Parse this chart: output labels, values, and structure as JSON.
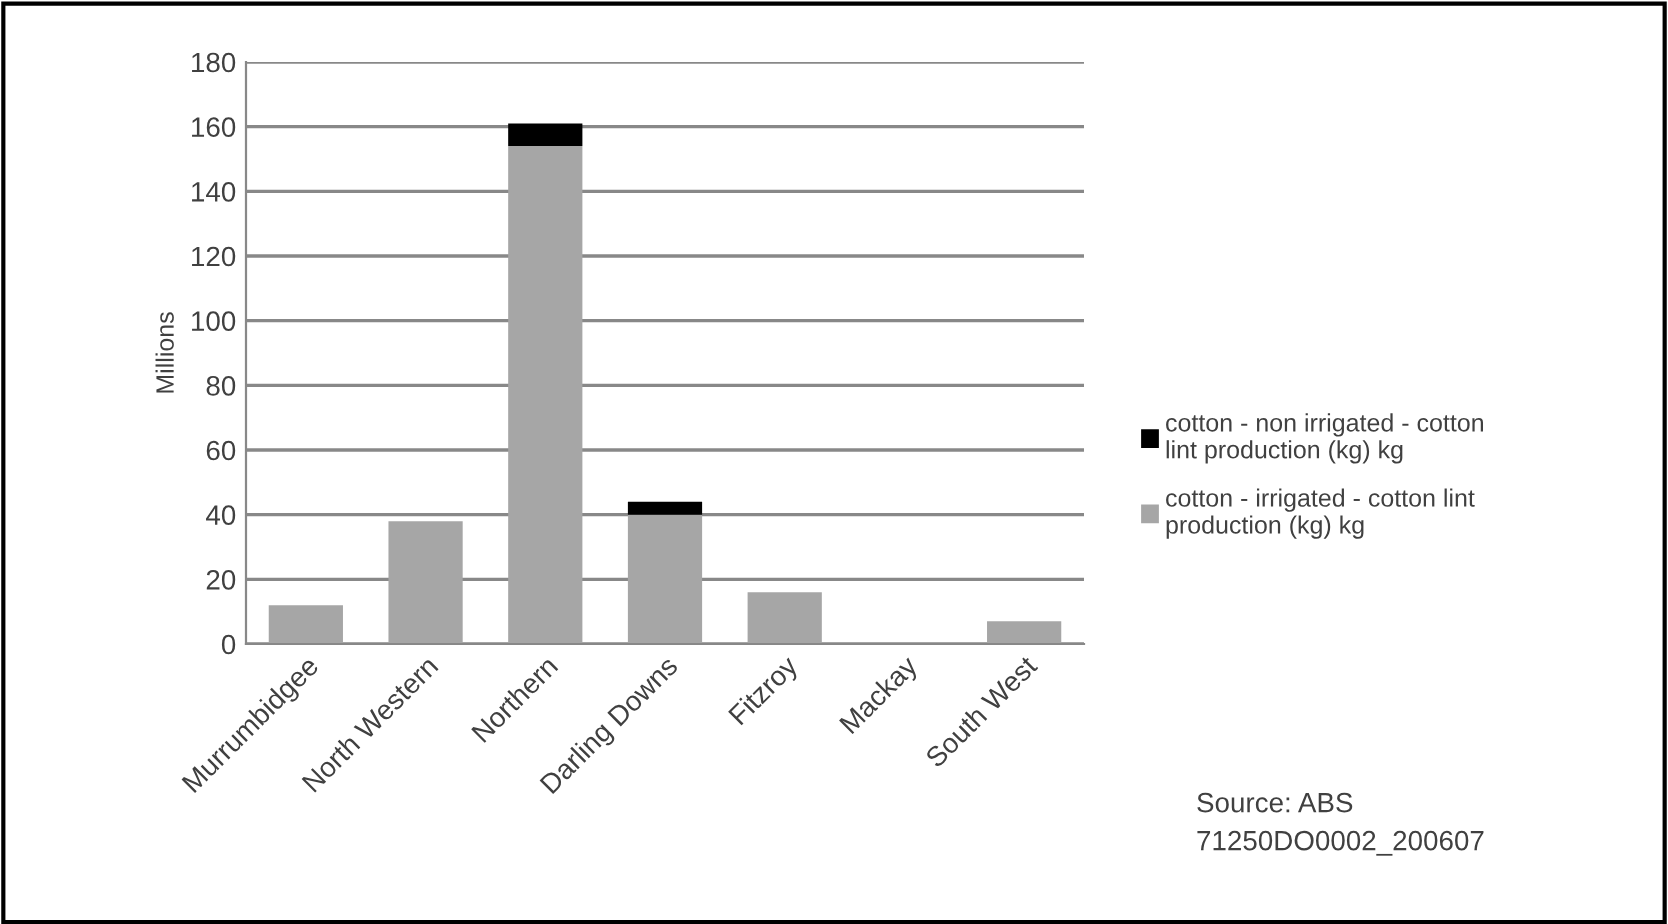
{
  "chart_data": {
    "type": "bar",
    "ylabel": "Millions",
    "stacked": true,
    "categories": [
      "Murrumbidgee",
      "North Western",
      "Northern",
      "Darling Downs",
      "Fitzroy",
      "Mackay",
      "South West"
    ],
    "series": [
      {
        "name": "cotton - irrigated - cotton lint production (kg) kg",
        "color": "#a6a6a6",
        "values": [
          12,
          38,
          154,
          40,
          16,
          0,
          7
        ]
      },
      {
        "name": "cotton - non irrigated - cotton lint production (kg) kg",
        "color": "#000000",
        "values": [
          0,
          0,
          7,
          4,
          0,
          0,
          0
        ]
      }
    ],
    "ylim": [
      0,
      180
    ],
    "yticks": [
      0,
      20,
      40,
      60,
      80,
      100,
      120,
      140,
      160,
      180
    ],
    "grid": "y",
    "legend": "right",
    "annotations": [
      "Source: ABS\n71250DO0002_200607"
    ]
  }
}
